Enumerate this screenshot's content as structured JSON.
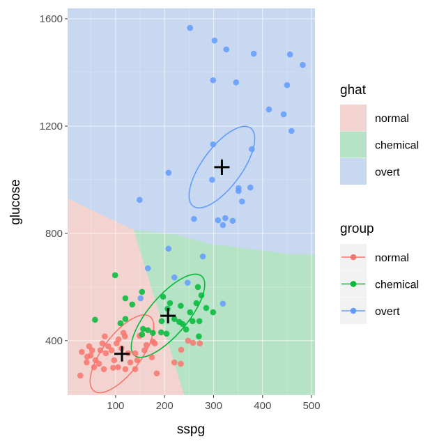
{
  "chart_data": {
    "type": "scatter",
    "xlabel": "sspg",
    "ylabel": "glucose",
    "xlim": [
      2,
      507
    ],
    "ylim": [
      197,
      1639
    ],
    "x_ticks": [
      100,
      200,
      300,
      400,
      500
    ],
    "y_ticks": [
      400,
      800,
      1200,
      1600
    ],
    "grid": true,
    "colors": {
      "normal": "#F8766D",
      "chemical": "#00BA38",
      "overt": "#619CFF"
    },
    "region_colors": {
      "normal": "#F2D3D0",
      "chemical": "#B6E2C5",
      "overt": "#C8D8F0"
    },
    "regions": [
      {
        "class": "normal",
        "polygon": [
          [
            2,
            930
          ],
          [
            137,
            813
          ],
          [
            240,
            197
          ],
          [
            2,
            197
          ]
        ]
      },
      {
        "class": "chemical",
        "polygon": [
          [
            137,
            813
          ],
          [
            226,
            795
          ],
          [
            291,
            761
          ],
          [
            461,
            722
          ],
          [
            507,
            722
          ],
          [
            507,
            197
          ],
          [
            240,
            197
          ]
        ]
      }
    ],
    "series": [
      {
        "name": "normal",
        "points": [
          [
            248,
            400
          ],
          [
            258,
            392
          ],
          [
            272,
            390
          ],
          [
            234,
            366
          ],
          [
            220,
            319
          ],
          [
            233,
            314
          ],
          [
            28,
            270
          ],
          [
            31,
            358
          ],
          [
            46,
            379
          ],
          [
            41,
            319
          ],
          [
            49,
            345
          ],
          [
            59,
            327
          ],
          [
            66,
            314
          ],
          [
            76,
            294
          ],
          [
            56,
            301
          ],
          [
            73,
            390
          ],
          [
            78,
            416
          ],
          [
            85,
            379
          ],
          [
            92,
            364
          ],
          [
            102,
            390
          ],
          [
            106,
            405
          ],
          [
            116,
            429
          ],
          [
            119,
            416
          ],
          [
            97,
            327
          ],
          [
            95,
            299
          ],
          [
            105,
            301
          ],
          [
            120,
            294
          ],
          [
            130,
            319
          ],
          [
            140,
            353
          ],
          [
            144,
            327
          ],
          [
            140,
            294
          ],
          [
            159,
            364
          ],
          [
            163,
            384
          ],
          [
            176,
            397
          ],
          [
            180,
            390
          ],
          [
            174,
            338
          ],
          [
            184,
            278
          ],
          [
            69,
            364
          ],
          [
            80,
            353
          ],
          [
            112,
            371
          ],
          [
            126,
            353
          ],
          [
            52,
            364
          ],
          [
            42,
            340
          ],
          [
            149,
            418
          ]
        ]
      },
      {
        "name": "chemical",
        "points": [
          [
            99,
            644
          ],
          [
            120,
            558
          ],
          [
            134,
            535
          ],
          [
            154,
            582
          ],
          [
            58,
            478
          ],
          [
            110,
            465
          ],
          [
            120,
            481
          ],
          [
            156,
            444
          ],
          [
            166,
            439
          ],
          [
            154,
            423
          ],
          [
            176,
            429
          ],
          [
            193,
            431
          ],
          [
            204,
            426
          ],
          [
            197,
            564
          ],
          [
            211,
            540
          ],
          [
            233,
            530
          ],
          [
            252,
            506
          ],
          [
            268,
            600
          ],
          [
            275,
            569
          ],
          [
            265,
            540
          ],
          [
            285,
            522
          ],
          [
            299,
            506
          ],
          [
            206,
            519
          ],
          [
            194,
            473
          ],
          [
            220,
            481
          ],
          [
            230,
            470
          ],
          [
            237,
            462
          ],
          [
            244,
            442
          ],
          [
            257,
            473
          ],
          [
            271,
            473
          ],
          [
            270,
            416
          ]
        ]
      },
      {
        "name": "overt",
        "points": [
          [
            252,
            1566
          ],
          [
            302,
            1519
          ],
          [
            326,
            1486
          ],
          [
            382,
            1470
          ],
          [
            456,
            1467
          ],
          [
            482,
            1428
          ],
          [
            299,
            1371
          ],
          [
            346,
            1363
          ],
          [
            450,
            1353
          ],
          [
            413,
            1262
          ],
          [
            443,
            1244
          ],
          [
            459,
            1182
          ],
          [
            299,
            1132
          ],
          [
            378,
            1114
          ],
          [
            208,
            1026
          ],
          [
            297,
            1000
          ],
          [
            351,
            969
          ],
          [
            351,
            958
          ],
          [
            375,
            971
          ],
          [
            358,
            919
          ],
          [
            149,
            925
          ],
          [
            260,
            854
          ],
          [
            309,
            849
          ],
          [
            324,
            857
          ],
          [
            319,
            831
          ],
          [
            339,
            847
          ],
          [
            208,
            743
          ],
          [
            278,
            714
          ],
          [
            166,
            670
          ],
          [
            220,
            636
          ],
          [
            247,
            616
          ],
          [
            319,
            538
          ],
          [
            151,
            558
          ]
        ]
      }
    ],
    "means": [
      {
        "name": "normal",
        "x": 113,
        "y": 351
      },
      {
        "name": "chemical",
        "x": 207,
        "y": 493
      },
      {
        "name": "overt",
        "x": 317,
        "y": 1047
      }
    ],
    "ellipses": [
      {
        "name": "normal",
        "cx": 113,
        "cy": 351,
        "sx": 65,
        "sy": 145,
        "rho": 0.7
      },
      {
        "name": "chemical",
        "cx": 207,
        "cy": 493,
        "sx": 75,
        "sy": 155,
        "rho": 0.75
      },
      {
        "name": "overt",
        "cx": 317,
        "cy": 1047,
        "sx": 67,
        "sy": 152,
        "rho": 0.7
      }
    ],
    "legends": [
      {
        "title": "ghat",
        "type": "fill",
        "entries": [
          "normal",
          "chemical",
          "overt"
        ]
      },
      {
        "title": "group",
        "type": "point-line",
        "entries": [
          "normal",
          "chemical",
          "overt"
        ]
      }
    ]
  }
}
